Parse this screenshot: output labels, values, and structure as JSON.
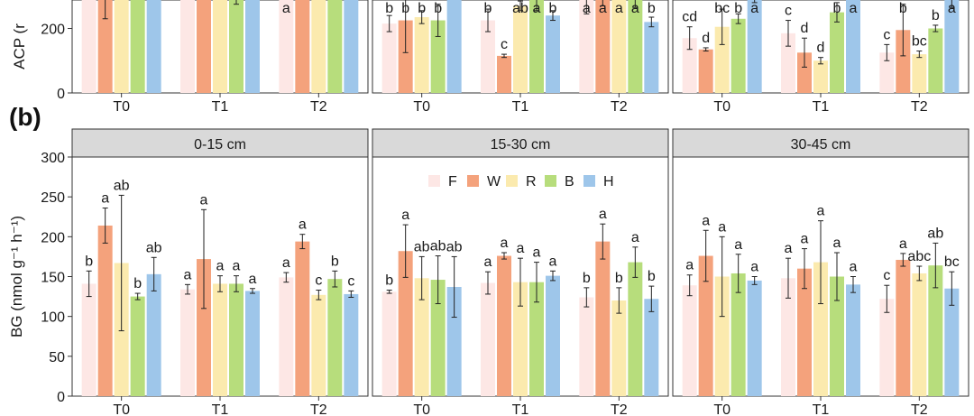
{
  "panel_label": "(b)",
  "chart_data": [
    {
      "type": "bar",
      "panel": "top-partial",
      "ylabel": "ACP (r",
      "ylim": [
        0,
        400
      ],
      "yticks": [
        "0",
        "200",
        "400"
      ],
      "categories": [
        "T0",
        "T1",
        "T2"
      ],
      "series_names": [
        "F",
        "W",
        "R",
        "B",
        "H"
      ],
      "colors": [
        "#fde7e5",
        "#f4a27c",
        "#fbeaae",
        "#b7dd7c",
        "#9ec6ea"
      ],
      "facets": [
        {
          "name": "",
          "values": [
            [
              340,
              315,
              395,
              400,
              400
            ],
            [
              355,
              400,
              400,
              385,
              400
            ],
            [
              345,
              400,
              400,
              400,
              400
            ]
          ],
          "errors": [
            [
              45,
              85,
              50,
              50,
              40
            ],
            [
              25,
              20,
              40,
              110,
              30
            ],
            [
              10,
              40,
              40,
              45,
              40
            ]
          ],
          "letters": [
            [
              "",
              "",
              "",
              "",
              ""
            ],
            [
              "",
              "",
              "",
              "",
              ""
            ],
            [
              "a",
              "",
              "",
              "",
              ""
            ]
          ]
        },
        {
          "name": "",
          "values": [
            [
              215,
              225,
              235,
              225,
              390
            ],
            [
              225,
              115,
              270,
              295,
              240
            ],
            [
              290,
              295,
              340,
              305,
              220
            ]
          ],
          "errors": [
            [
              25,
              100,
              20,
              50,
              55
            ],
            [
              35,
              5,
              15,
              40,
              15
            ],
            [
              45,
              25,
              20,
              40,
              15
            ]
          ],
          "letters": [
            [
              "b",
              "b",
              "b",
              "b",
              ""
            ],
            [
              "b",
              "c",
              "ab",
              "a",
              "b"
            ],
            [
              "a",
              "a",
              "a",
              "a",
              "b"
            ]
          ]
        },
        {
          "name": "",
          "values": [
            [
              170,
              135,
              205,
              230,
              290
            ],
            [
              185,
              125,
              100,
              250,
              305
            ],
            [
              125,
              195,
              120,
              200,
              295
            ]
          ],
          "errors": [
            [
              35,
              5,
              55,
              15,
              10
            ],
            [
              40,
              45,
              10,
              30,
              15
            ],
            [
              25,
              80,
              10,
              10,
              30
            ]
          ],
          "letters": [
            [
              "cd",
              "d",
              "bc",
              "b",
              "a"
            ],
            [
              "c",
              "d",
              "d",
              "b",
              "a"
            ],
            [
              "c",
              "b",
              "bc",
              "b",
              "a"
            ]
          ]
        }
      ]
    },
    {
      "type": "bar",
      "panel": "(b)",
      "ylabel": "BG (nmol g⁻¹ h⁻¹)",
      "ylim": [
        0,
        300
      ],
      "yticks": [
        "0",
        "50",
        "100",
        "150",
        "200",
        "250",
        "300"
      ],
      "categories": [
        "T0",
        "T1",
        "T2"
      ],
      "series_names": [
        "F",
        "W",
        "R",
        "B",
        "H"
      ],
      "colors": [
        "#fde7e5",
        "#f4a27c",
        "#fbeaae",
        "#b7dd7c",
        "#9ec6ea"
      ],
      "legend": {
        "labels": [
          "F",
          "W",
          "R",
          "B",
          "H"
        ],
        "position": "top-center",
        "facet": 1
      },
      "facets": [
        {
          "name": "0-15 cm",
          "values": [
            [
              141,
              214,
              167,
              125,
              153
            ],
            [
              134,
              172,
              141,
              141,
              132
            ],
            [
              149,
              194,
              127,
              147,
              128
            ]
          ],
          "errors": [
            [
              16,
              22,
              85,
              4,
              21
            ],
            [
              6,
              62,
              10,
              10,
              3
            ],
            [
              6,
              9,
              6,
              10,
              4
            ]
          ],
          "letters": [
            [
              "b",
              "a",
              "ab",
              "b",
              "ab"
            ],
            [
              "a",
              "a",
              "a",
              "a",
              "a"
            ],
            [
              "a",
              "a",
              "c",
              "b",
              "c"
            ]
          ]
        },
        {
          "name": "15-30 cm",
          "values": [
            [
              131,
              182,
              148,
              146,
              137
            ],
            [
              142,
              176,
              143,
              143,
              151
            ],
            [
              124,
              194,
              120,
              168,
              122
            ]
          ],
          "errors": [
            [
              2,
              33,
              27,
              30,
              38
            ],
            [
              14,
              4,
              30,
              25,
              6
            ],
            [
              12,
              22,
              16,
              19,
              16
            ]
          ],
          "letters": [
            [
              "b",
              "a",
              "ab",
              "ab",
              "ab"
            ],
            [
              "a",
              "a",
              "a",
              "a",
              "a"
            ],
            [
              "b",
              "a",
              "b",
              "a",
              "b"
            ]
          ]
        },
        {
          "name": "30-45 cm",
          "values": [
            [
              139,
              176,
              150,
              154,
              145
            ],
            [
              148,
              160,
              168,
              150,
              140
            ],
            [
              122,
              171,
              154,
              164,
              135
            ]
          ],
          "errors": [
            [
              13,
              32,
              50,
              24,
              5
            ],
            [
              25,
              25,
              52,
              30,
              10
            ],
            [
              17,
              8,
              9,
              28,
              21
            ]
          ],
          "letters": [
            [
              "a",
              "a",
              "a",
              "a",
              "a"
            ],
            [
              "a",
              "a",
              "a",
              "a",
              "a"
            ],
            [
              "c",
              "a",
              "abc",
              "ab",
              "bc"
            ]
          ]
        }
      ]
    }
  ]
}
